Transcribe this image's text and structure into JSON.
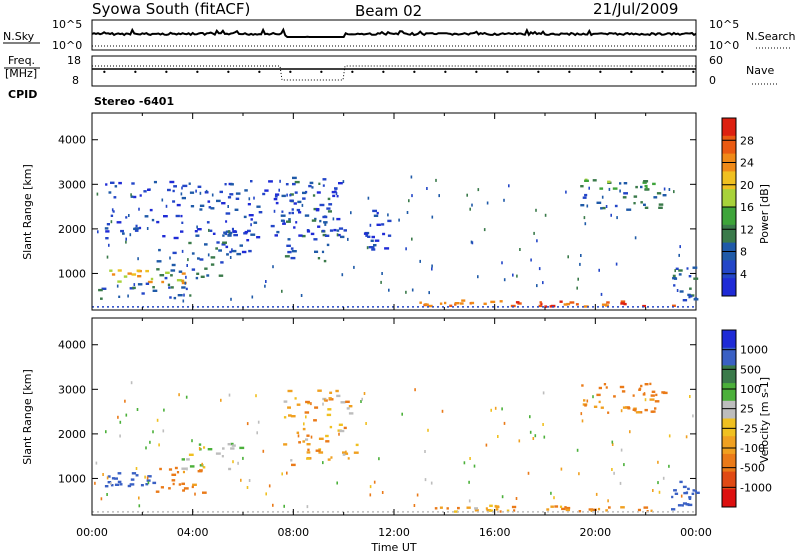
{
  "header": {
    "station": "Syowa South (fitACF)",
    "beam": "Beam 02",
    "date": "21/Jul/2009"
  },
  "strip": {
    "nsky_label": "N.Sky",
    "nsearch_label": "N.Search",
    "freq_label_line1": "Freq.",
    "freq_label_line2": "[MHz]",
    "nave_label": "Nave",
    "cpid_label": "CPID",
    "cpid_value": "Stereo -6401",
    "left_ticks_top": [
      "10^5",
      "10^0"
    ],
    "right_ticks_top": [
      "10^5",
      "10^0"
    ],
    "left_ticks_freq": [
      "18",
      "8"
    ],
    "right_ticks_nave": [
      "60",
      "0"
    ]
  },
  "colors": {
    "power_scale": [
      "#1f2bd6",
      "#2346c8",
      "#1f5aa8",
      "#3a7a4a",
      "#3ea43a",
      "#a8d23a",
      "#f0c020",
      "#f08a18",
      "#ea5a12",
      "#dd2010"
    ],
    "velocity_scale": [
      "#1f2bd6",
      "#3a60c4",
      "#3a7a4a",
      "#4bb03a",
      "#bdbdbd",
      "#f0c020",
      "#f0a020",
      "#ea7a18",
      "#e04a14",
      "#dd1010"
    ]
  },
  "chart_data": [
    {
      "type": "heatmap",
      "panel": "power",
      "xlabel": "",
      "ylabel": "Slant Range [km]",
      "colorbar_label": "Power [dB]",
      "colorbar_ticks": [
        "28",
        "24",
        "20",
        "16",
        "12",
        "8",
        "4"
      ],
      "colorbar_range": [
        0,
        30
      ],
      "x_ticks": [
        "00:00",
        "04:00",
        "08:00",
        "12:00",
        "16:00",
        "20:00",
        "00:00"
      ],
      "x_range_hours": [
        0,
        24
      ],
      "y_ticks": [
        "1000",
        "2000",
        "3000",
        "4000"
      ],
      "y_range_km": [
        180,
        4600
      ],
      "regions": [
        {
          "t": [
            0.4,
            3.8
          ],
          "r": [
            800,
            1150
          ],
          "v": 20
        },
        {
          "t": [
            2.5,
            5.2
          ],
          "r": [
            900,
            1750
          ],
          "v": 8
        },
        {
          "t": [
            0.2,
            4.0
          ],
          "r": [
            450,
            800
          ],
          "v": 8
        },
        {
          "t": [
            5.0,
            6.6
          ],
          "r": [
            1450,
            2000
          ],
          "v": 6
        },
        {
          "t": [
            7.5,
            9.5
          ],
          "r": [
            1300,
            3200
          ],
          "v": 8
        },
        {
          "t": [
            10.8,
            11.8
          ],
          "r": [
            1500,
            2500
          ],
          "v": 4
        },
        {
          "t": [
            12.6,
            17.2
          ],
          "r": [
            280,
            420
          ],
          "v": 24
        },
        {
          "t": [
            17.6,
            23.5
          ],
          "r": [
            280,
            400
          ],
          "v": 26
        },
        {
          "t": [
            19.3,
            22.7
          ],
          "r": [
            2900,
            3150
          ],
          "v": 12
        },
        {
          "t": [
            19.3,
            22.7
          ],
          "r": [
            2450,
            2850
          ],
          "v": 8
        },
        {
          "t": [
            23.0,
            24.0
          ],
          "r": [
            300,
            1300
          ],
          "v": 8
        },
        {
          "t": [
            0.5,
            10
          ],
          "r": [
            1800,
            3100
          ],
          "v": 4
        }
      ]
    },
    {
      "type": "heatmap",
      "panel": "velocity",
      "xlabel": "Time UT",
      "ylabel": "Slant Range [km]",
      "colorbar_label": "Velocity [m s-1]",
      "colorbar_ticks": [
        "1000",
        "500",
        "100",
        "25",
        "-25",
        "-100",
        "-500",
        "-1000"
      ],
      "colorbar_range": [
        -1000,
        1000
      ],
      "x_ticks": [
        "00:00",
        "04:00",
        "08:00",
        "12:00",
        "16:00",
        "20:00",
        "00:00"
      ],
      "x_range_hours": [
        0,
        24
      ],
      "y_ticks": [
        "1000",
        "2000",
        "3000",
        "4000"
      ],
      "y_range_km": [
        180,
        4600
      ],
      "regions": [
        {
          "t": [
            0.4,
            2.6
          ],
          "r": [
            850,
            1150
          ],
          "v": 800
        },
        {
          "t": [
            2.4,
            4.4
          ],
          "r": [
            700,
            1350
          ],
          "v": -150
        },
        {
          "t": [
            3.5,
            6.0
          ],
          "r": [
            1200,
            1800
          ],
          "v": 100
        },
        {
          "t": [
            12.6,
            17.2
          ],
          "r": [
            280,
            420
          ],
          "v": -60
        },
        {
          "t": [
            17.6,
            23.5
          ],
          "r": [
            280,
            400
          ],
          "v": -120
        },
        {
          "t": [
            19.3,
            22.7
          ],
          "r": [
            2850,
            3150
          ],
          "v": -200
        },
        {
          "t": [
            19.3,
            22.5
          ],
          "r": [
            2450,
            2800
          ],
          "v": -150
        },
        {
          "t": [
            23.0,
            24.0
          ],
          "r": [
            300,
            1000
          ],
          "v": 600
        },
        {
          "t": [
            7.5,
            10.5
          ],
          "r": [
            1300,
            3000
          ],
          "v": -50
        }
      ]
    }
  ]
}
